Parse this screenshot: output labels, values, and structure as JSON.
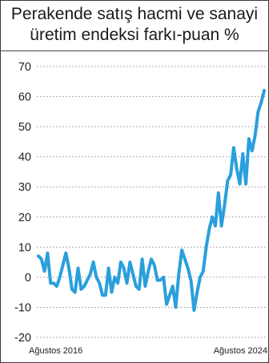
{
  "title_line1": "Perakende satış hacmi ve sanayi",
  "title_line2": "üretim endeksi farkı-puan %",
  "chart_data": {
    "type": "line",
    "title": "Perakende satış hacmi ve sanayi üretim endeksi farkı-puan %",
    "ylim": [
      -20,
      70
    ],
    "yticks": [
      70,
      60,
      50,
      40,
      30,
      20,
      10,
      0,
      -10,
      -20
    ],
    "x_labels": [
      "Ağustos 2016",
      "Ağustos 2024"
    ],
    "x_start": "Ağustos 2016",
    "x_end": "Ağustos 2024",
    "grid": true,
    "series": [
      {
        "color": "#2a9fdc",
        "values": [
          7,
          6,
          2,
          8,
          -2,
          -2,
          -3,
          0,
          4,
          8,
          3,
          -4,
          -5,
          3,
          -4,
          -3,
          -1,
          1,
          5,
          0,
          -2,
          -6,
          -6,
          3,
          -5,
          0,
          -2,
          5,
          3,
          -2,
          5,
          1,
          -3,
          -4,
          6,
          -3,
          2,
          6,
          4,
          -1,
          -1,
          0,
          -9,
          -6,
          -3,
          -10,
          1,
          9,
          6,
          3,
          -1,
          -11,
          -5,
          0,
          2,
          10,
          16,
          20,
          17,
          28,
          17,
          24,
          32,
          34,
          43,
          36,
          31,
          41,
          31,
          46,
          42,
          47,
          55,
          58,
          62
        ]
      }
    ]
  }
}
